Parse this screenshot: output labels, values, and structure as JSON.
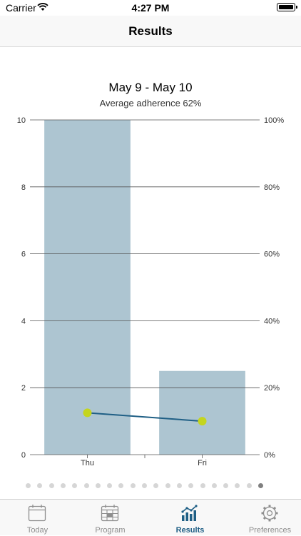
{
  "status_bar": {
    "carrier": "Carrier",
    "time": "4:27 PM"
  },
  "nav": {
    "title": "Results"
  },
  "chart_header": {
    "title": "May 9 - May 10",
    "subtitle": "Average adherence 62%"
  },
  "chart_data": {
    "type": "bar",
    "categories": [
      "Thu",
      "Fri"
    ],
    "series": [
      {
        "values": [
          10,
          2.5
        ],
        "color": "#adc5d1"
      },
      {
        "values": [
          12.5,
          10
        ],
        "color": "#1f5f85",
        "marker_color": "#c4d51e"
      }
    ],
    "left_ticks": [
      "0",
      "2",
      "4",
      "6",
      "8",
      "10"
    ],
    "right_ticks": [
      "0%",
      "20%",
      "40%",
      "60%",
      "80%",
      "100%"
    ],
    "ylim": [
      0,
      10
    ],
    "ylim_right": [
      0,
      100
    ],
    "grid": true
  },
  "pager": {
    "count": 21,
    "active_index": 20
  },
  "tabs": [
    {
      "label": "Today",
      "icon": "calendar-icon",
      "active": false
    },
    {
      "label": "Program",
      "icon": "program-icon",
      "active": false
    },
    {
      "label": "Results",
      "icon": "chart-icon",
      "active": true
    },
    {
      "label": "Preferences",
      "icon": "gear-icon",
      "active": false
    }
  ],
  "colors": {
    "accent": "#1f5f85",
    "bar": "#adc5d1",
    "marker": "#c4d51e"
  }
}
